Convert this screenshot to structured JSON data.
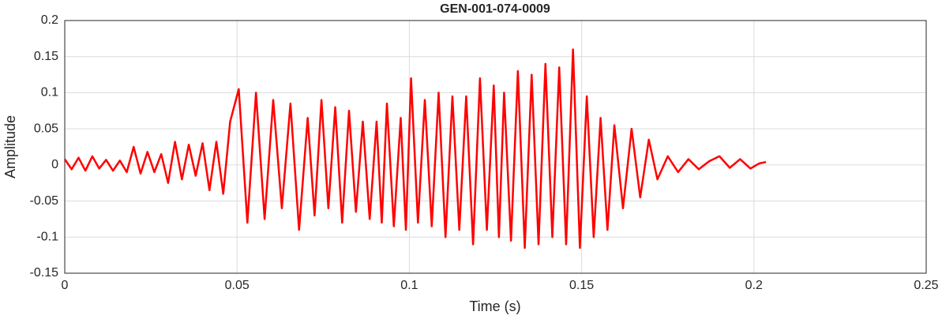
{
  "chart_data": {
    "type": "line",
    "title": "GEN-001-074-0009",
    "x_label": "Time (s)",
    "y_label": "Amplitude",
    "color": "#ff0000",
    "grid": true,
    "xlim": [
      0,
      0.25
    ],
    "xticks": [
      0,
      0.05,
      0.1,
      0.15,
      0.2,
      0.25
    ],
    "ylim": [
      -0.15,
      0.2
    ],
    "yticks": [
      -0.15,
      -0.1,
      -0.05,
      0,
      0.05,
      0.1,
      0.15,
      0.2
    ],
    "x": [
      0,
      0.002,
      0.004,
      0.006,
      0.008,
      0.01,
      0.012,
      0.014,
      0.016,
      0.018,
      0.02,
      0.022,
      0.024,
      0.026,
      0.028,
      0.03,
      0.032,
      0.034,
      0.036,
      0.038,
      0.04,
      0.042,
      0.044,
      0.046,
      0.048,
      0.0505,
      0.053,
      0.0555,
      0.058,
      0.0605,
      0.063,
      0.0655,
      0.068,
      0.0705,
      0.0725,
      0.0745,
      0.0765,
      0.0785,
      0.0805,
      0.0825,
      0.0845,
      0.0865,
      0.0885,
      0.0905,
      0.092,
      0.0935,
      0.0955,
      0.0975,
      0.099,
      0.1005,
      0.1025,
      0.1045,
      0.1065,
      0.1085,
      0.1105,
      0.1125,
      0.1145,
      0.1165,
      0.1185,
      0.1205,
      0.1225,
      0.1245,
      0.126,
      0.1275,
      0.1295,
      0.1315,
      0.1335,
      0.1355,
      0.1375,
      0.1395,
      0.1415,
      0.1435,
      0.1455,
      0.1475,
      0.1495,
      0.1515,
      0.1535,
      0.1555,
      0.1575,
      0.1595,
      0.162,
      0.1645,
      0.167,
      0.1695,
      0.172,
      0.175,
      0.178,
      0.181,
      0.184,
      0.187,
      0.19,
      0.193,
      0.196,
      0.199,
      0.2015,
      0.2035
    ],
    "values": [
      0.008,
      -0.006,
      0.01,
      -0.008,
      0.012,
      -0.005,
      0.007,
      -0.008,
      0.006,
      -0.01,
      0.025,
      -0.012,
      0.018,
      -0.01,
      0.015,
      -0.025,
      0.032,
      -0.02,
      0.028,
      -0.015,
      0.03,
      -0.035,
      0.032,
      -0.04,
      0.06,
      0.105,
      -0.08,
      0.1,
      -0.075,
      0.09,
      -0.06,
      0.085,
      -0.09,
      0.065,
      -0.07,
      0.09,
      -0.06,
      0.08,
      -0.08,
      0.075,
      -0.065,
      0.06,
      -0.075,
      0.06,
      -0.08,
      0.085,
      -0.085,
      0.065,
      -0.09,
      0.12,
      -0.08,
      0.09,
      -0.085,
      0.1,
      -0.1,
      0.095,
      -0.09,
      0.095,
      -0.11,
      0.12,
      -0.09,
      0.11,
      -0.1,
      0.1,
      -0.105,
      0.13,
      -0.115,
      0.125,
      -0.11,
      0.14,
      -0.1,
      0.135,
      -0.11,
      0.16,
      -0.115,
      0.095,
      -0.1,
      0.065,
      -0.09,
      0.055,
      -0.06,
      0.05,
      -0.045,
      0.035,
      -0.02,
      0.012,
      -0.01,
      0.008,
      -0.006,
      0.005,
      0.012,
      -0.004,
      0.008,
      -0.005,
      0.002,
      0.004
    ]
  }
}
